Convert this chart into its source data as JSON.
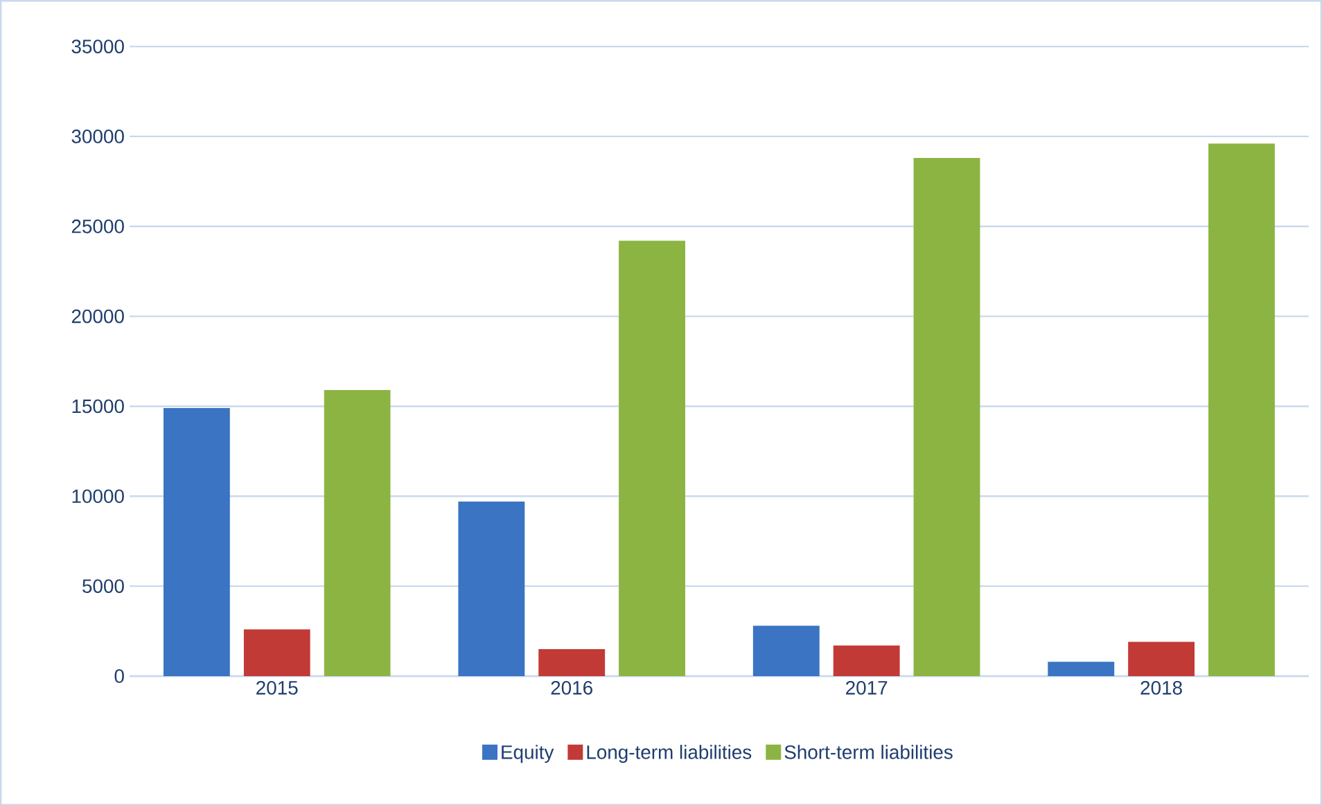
{
  "chart_data": {
    "type": "bar",
    "categories": [
      "2015",
      "2016",
      "2017",
      "2018"
    ],
    "series": [
      {
        "name": "Equity",
        "color": "#3a74c2",
        "values": [
          14900,
          9700,
          2800,
          800
        ]
      },
      {
        "name": "Long-term liabilities",
        "color": "#c23a36",
        "values": [
          2600,
          1500,
          1700,
          1900
        ]
      },
      {
        "name": "Short-term liabilities",
        "color": "#8cb443",
        "values": [
          15900,
          24200,
          28800,
          29600
        ]
      }
    ],
    "ylim": [
      0,
      35000
    ],
    "yticks": [
      0,
      5000,
      10000,
      15000,
      20000,
      25000,
      30000,
      35000
    ],
    "grid": "y",
    "legend": "bottom"
  }
}
